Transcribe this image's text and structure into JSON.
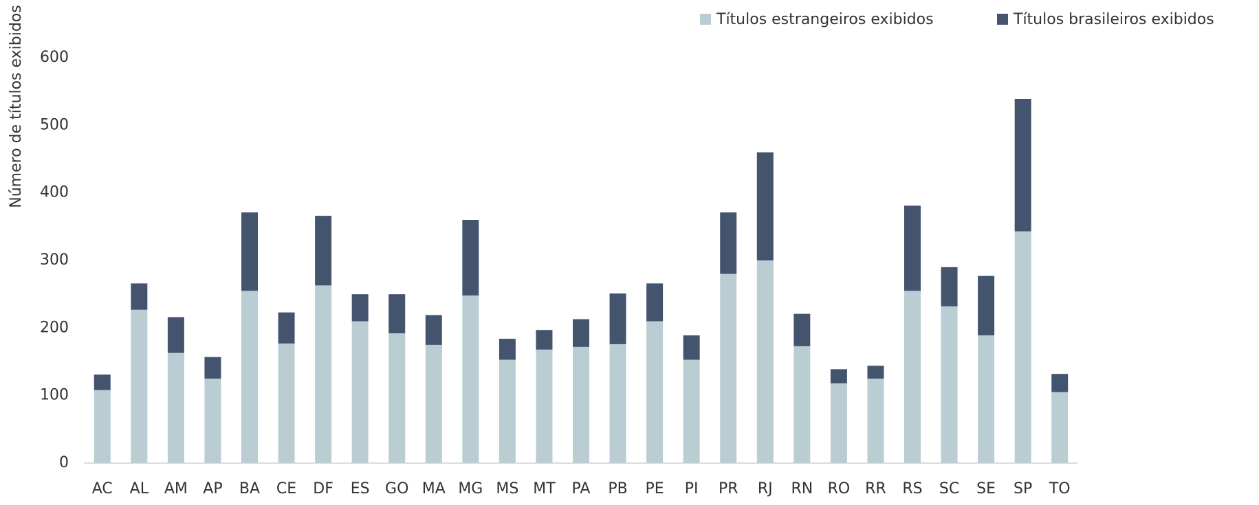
{
  "chart_data": {
    "type": "stacked_bar",
    "y_label": "Número de títulos exibidos",
    "categories": [
      "AC",
      "AL",
      "AM",
      "AP",
      "BA",
      "CE",
      "DF",
      "ES",
      "GO",
      "MA",
      "MG",
      "MS",
      "MT",
      "PA",
      "PB",
      "PE",
      "PI",
      "PR",
      "RJ",
      "RN",
      "RO",
      "RR",
      "RS",
      "SC",
      "SE",
      "SP",
      "TO"
    ],
    "series": [
      {
        "name": "Títulos estrangeiros exibidos",
        "color": "#b9cdd3",
        "values": [
          108,
          227,
          163,
          125,
          255,
          177,
          263,
          210,
          192,
          175,
          248,
          153,
          168,
          172,
          176,
          210,
          153,
          280,
          300,
          173,
          118,
          125,
          255,
          232,
          189,
          343,
          105
        ]
      },
      {
        "name": "Títulos brasileiros exibidos",
        "color": "#44546f",
        "values": [
          23,
          39,
          53,
          32,
          116,
          46,
          103,
          40,
          58,
          44,
          112,
          31,
          29,
          41,
          75,
          56,
          36,
          91,
          160,
          48,
          21,
          19,
          126,
          58,
          88,
          196,
          27
        ]
      }
    ],
    "ylim": [
      0,
      600
    ],
    "yticks": [
      0,
      100,
      200,
      300,
      400,
      500,
      600
    ],
    "grid": false
  }
}
